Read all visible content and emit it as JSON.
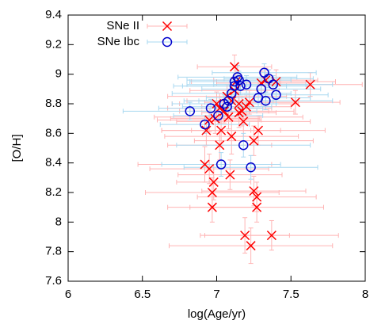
{
  "chart_data": {
    "type": "scatter",
    "x_label": "log(Age/yr)",
    "y_label": "[O/H]",
    "xlim": [
      6,
      8
    ],
    "ylim": [
      7.6,
      9.4
    ],
    "xticks": [
      6,
      6.5,
      7,
      7.5,
      8
    ],
    "yticks": [
      7.6,
      7.8,
      8,
      8.2,
      8.4,
      8.6,
      8.8,
      9,
      9.2,
      9.4
    ],
    "grid": false,
    "legend": "top-left",
    "series": [
      {
        "name": "SNe II",
        "marker": "cross",
        "color": "#ff0000",
        "error_color": "#ffb4b4",
        "x": [
          6.93,
          6.95,
          6.92,
          6.95,
          6.98,
          6.97,
          6.97,
          7.02,
          7.03,
          7.05,
          7.08,
          7.1,
          7.09,
          7.1,
          7.12,
          7.13,
          7.15,
          7.17,
          7.18,
          7.2,
          7.22,
          7.25,
          7.28,
          7.25,
          7.27,
          7.27,
          7.19,
          7.23,
          7.37,
          7.3,
          7.33,
          7.4,
          7.53,
          7.63,
          7.0,
          7.07,
          7.12,
          7.02,
          7.15,
          6.99
        ],
        "values": [
          8.62,
          8.69,
          8.39,
          8.36,
          8.27,
          8.2,
          8.1,
          8.52,
          8.62,
          8.75,
          8.71,
          8.58,
          8.32,
          8.82,
          9.05,
          8.95,
          8.8,
          8.75,
          8.68,
          8.78,
          8.81,
          8.55,
          8.62,
          8.21,
          8.17,
          8.1,
          7.91,
          7.84,
          7.91,
          8.94,
          8.96,
          8.95,
          8.81,
          8.93,
          8.8,
          8.85,
          8.89,
          8.77,
          8.74,
          8.7
        ],
        "xerr": [
          0.3,
          0.35,
          0.45,
          0.4,
          0.25,
          0.45,
          0.3,
          0.35,
          0.4,
          0.3,
          0.5,
          0.45,
          0.35,
          0.3,
          0.25,
          0.3,
          0.4,
          0.35,
          0.45,
          0.3,
          0.3,
          0.4,
          0.45,
          0.35,
          0.4,
          0.45,
          0.3,
          0.55,
          0.45,
          0.3,
          0.35,
          0.4,
          0.3,
          0.35,
          0.3,
          0.4,
          0.3,
          0.35,
          0.25,
          0.3
        ],
        "yerr": [
          0.1,
          0.08,
          0.12,
          0.1,
          0.12,
          0.1,
          0.1,
          0.1,
          0.1,
          0.08,
          0.08,
          0.12,
          0.1,
          0.08,
          0.08,
          0.1,
          0.08,
          0.1,
          0.1,
          0.08,
          0.08,
          0.1,
          0.1,
          0.1,
          0.1,
          0.1,
          0.12,
          0.12,
          0.1,
          0.08,
          0.08,
          0.08,
          0.08,
          0.08,
          0.08,
          0.08,
          0.08,
          0.1,
          0.1,
          0.1
        ]
      },
      {
        "name": "SNe Ibc",
        "marker": "circle",
        "color": "#0000cc",
        "error_color": "#a8d8f0",
        "x": [
          6.82,
          6.92,
          6.96,
          7.01,
          7.03,
          7.05,
          7.08,
          7.1,
          7.12,
          7.12,
          7.14,
          7.16,
          7.18,
          7.2,
          7.23,
          7.28,
          7.3,
          7.32,
          7.33,
          7.35,
          7.38,
          7.4,
          7.07,
          7.15
        ],
        "values": [
          8.75,
          8.66,
          8.77,
          8.72,
          8.39,
          8.8,
          8.82,
          8.87,
          8.92,
          8.95,
          8.98,
          8.92,
          8.52,
          8.93,
          8.37,
          8.84,
          8.9,
          9.01,
          8.82,
          8.97,
          8.93,
          8.86,
          8.78,
          8.96
        ],
        "xerr": [
          0.45,
          0.3,
          0.35,
          0.3,
          0.4,
          0.35,
          0.3,
          0.4,
          0.35,
          0.3,
          0.4,
          0.45,
          0.45,
          0.4,
          0.45,
          0.35,
          0.4,
          0.35,
          0.45,
          0.3,
          0.4,
          0.35,
          0.3,
          0.35
        ],
        "yerr": [
          0.06,
          0.06,
          0.06,
          0.06,
          0.08,
          0.06,
          0.06,
          0.06,
          0.06,
          0.06,
          0.08,
          0.06,
          0.08,
          0.06,
          0.08,
          0.06,
          0.06,
          0.06,
          0.06,
          0.06,
          0.06,
          0.06,
          0.06,
          0.06
        ]
      }
    ]
  }
}
